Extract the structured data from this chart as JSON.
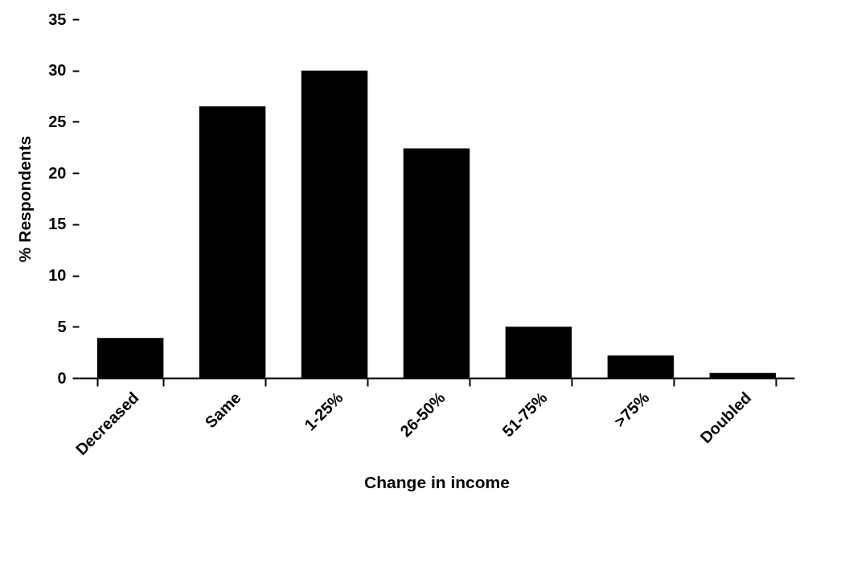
{
  "chart_data": {
    "type": "bar",
    "xlabel": "Change in income",
    "ylabel": "% Respondents",
    "categories": [
      "Decreased",
      "Same",
      "1-25%",
      "26-50%",
      "51-75%",
      ">75%",
      "Doubled"
    ],
    "values": [
      3.9,
      26.5,
      30,
      22.4,
      5,
      2.2,
      0.5
    ],
    "color": "#000000",
    "ylim": [
      0,
      35
    ],
    "yticks": [
      0,
      5,
      10,
      15,
      20,
      25,
      30,
      35
    ],
    "grid": false
  }
}
